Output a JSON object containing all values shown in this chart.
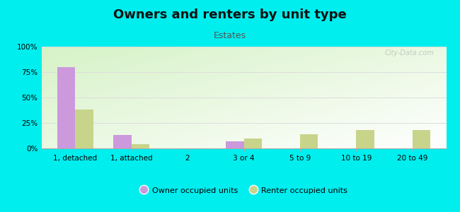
{
  "title": "Owners and renters by unit type",
  "subtitle": "Estates",
  "categories": [
    "1, detached",
    "1, attached",
    "2",
    "3 or 4",
    "5 to 9",
    "10 to 19",
    "20 to 49"
  ],
  "owner_values": [
    80,
    13,
    0,
    7,
    0,
    0,
    0
  ],
  "renter_values": [
    38,
    4,
    0,
    10,
    14,
    18,
    18
  ],
  "owner_color": "#cc99dd",
  "renter_color": "#c8d48a",
  "background_color": "#00eeee",
  "title_fontsize": 13,
  "subtitle_fontsize": 9,
  "ylabel_ticks": [
    0,
    25,
    50,
    75,
    100
  ],
  "ylabel_labels": [
    "0%",
    "25%",
    "50%",
    "75%",
    "100%"
  ],
  "ylim": [
    0,
    100
  ],
  "legend_labels": [
    "Owner occupied units",
    "Renter occupied units"
  ],
  "bar_width": 0.32,
  "watermark": "City-Data.com",
  "plot_bg_colors": [
    "#d5edc0",
    "#f5fff5",
    "#ffffff"
  ],
  "grid_color": "#dddddd",
  "tick_label_fontsize": 7.5,
  "title_color": "#111111",
  "subtitle_color": "#555555"
}
